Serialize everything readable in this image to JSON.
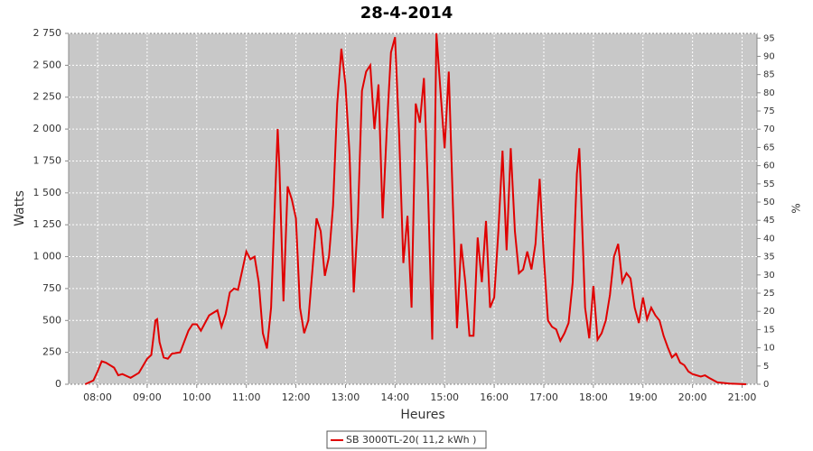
{
  "chart_data": {
    "type": "line",
    "title": "28-4-2014",
    "xlabel": "Heures",
    "ylabel": "Watts",
    "y2label": "%",
    "x": [
      "07:45",
      "07:55",
      "08:00",
      "08:05",
      "08:10",
      "08:20",
      "08:25",
      "08:30",
      "08:40",
      "08:50",
      "09:00",
      "09:05",
      "09:10",
      "09:12",
      "09:15",
      "09:20",
      "09:25",
      "09:30",
      "09:40",
      "09:50",
      "09:55",
      "10:00",
      "10:05",
      "10:15",
      "10:25",
      "10:30",
      "10:35",
      "10:40",
      "10:45",
      "10:50",
      "11:00",
      "11:05",
      "11:10",
      "11:15",
      "11:20",
      "11:25",
      "11:30",
      "11:35",
      "11:38",
      "11:40",
      "11:45",
      "11:50",
      "11:55",
      "12:00",
      "12:05",
      "12:10",
      "12:15",
      "12:20",
      "12:25",
      "12:30",
      "12:35",
      "12:40",
      "12:45",
      "12:50",
      "12:55",
      "13:00",
      "13:05",
      "13:10",
      "13:15",
      "13:20",
      "13:25",
      "13:30",
      "13:35",
      "13:40",
      "13:45",
      "13:50",
      "13:55",
      "14:00",
      "14:05",
      "14:10",
      "14:15",
      "14:20",
      "14:25",
      "14:30",
      "14:35",
      "14:40",
      "14:45",
      "14:50",
      "14:55",
      "15:00",
      "15:05",
      "15:10",
      "15:15",
      "15:20",
      "15:25",
      "15:30",
      "15:35",
      "15:40",
      "15:45",
      "15:50",
      "15:55",
      "16:00",
      "16:05",
      "16:10",
      "16:15",
      "16:20",
      "16:25",
      "16:30",
      "16:35",
      "16:40",
      "16:45",
      "16:50",
      "16:55",
      "17:00",
      "17:05",
      "17:10",
      "17:15",
      "17:20",
      "17:25",
      "17:30",
      "17:35",
      "17:40",
      "17:43",
      "17:45",
      "17:50",
      "17:55",
      "18:00",
      "18:05",
      "18:10",
      "18:15",
      "18:20",
      "18:25",
      "18:30",
      "18:35",
      "18:40",
      "18:45",
      "18:50",
      "18:55",
      "19:00",
      "19:05",
      "19:10",
      "19:15",
      "19:20",
      "19:25",
      "19:30",
      "19:35",
      "19:40",
      "19:45",
      "19:50",
      "19:55",
      "20:00",
      "20:10",
      "20:15",
      "20:20",
      "20:30",
      "20:45",
      "21:05"
    ],
    "series": [
      {
        "name": "SB 3000TL-20( 11,2 kWh )",
        "color": "#e00000",
        "values": [
          0,
          30,
          100,
          180,
          170,
          130,
          70,
          80,
          50,
          90,
          200,
          230,
          500,
          510,
          330,
          210,
          200,
          240,
          250,
          420,
          470,
          470,
          420,
          540,
          580,
          450,
          550,
          720,
          750,
          740,
          1040,
          980,
          1000,
          800,
          400,
          280,
          600,
          1500,
          2000,
          1700,
          650,
          1550,
          1450,
          1300,
          600,
          400,
          500,
          900,
          1300,
          1200,
          850,
          1000,
          1400,
          2200,
          2630,
          2350,
          1800,
          720,
          1300,
          2300,
          2450,
          2500,
          2000,
          2350,
          1300,
          2000,
          2600,
          2720,
          1950,
          950,
          1320,
          600,
          2200,
          2050,
          2400,
          1500,
          350,
          2750,
          2300,
          1850,
          2450,
          1400,
          440,
          1100,
          800,
          380,
          380,
          1150,
          800,
          1280,
          600,
          680,
          1200,
          1830,
          1050,
          1850,
          1200,
          870,
          900,
          1040,
          900,
          1100,
          1610,
          1000,
          500,
          450,
          430,
          340,
          400,
          480,
          800,
          1650,
          1850,
          1500,
          600,
          360,
          770,
          350,
          400,
          500,
          700,
          1000,
          1100,
          800,
          870,
          830,
          600,
          480,
          680,
          510,
          600,
          540,
          500,
          380,
          290,
          210,
          240,
          170,
          150,
          100,
          80,
          60,
          70,
          50,
          15,
          5,
          0
        ]
      }
    ],
    "xlim": [
      "07:25",
      "21:18"
    ],
    "xticks": [
      "08:00",
      "09:00",
      "10:00",
      "11:00",
      "12:00",
      "13:00",
      "14:00",
      "15:00",
      "16:00",
      "17:00",
      "18:00",
      "19:00",
      "20:00",
      "21:00"
    ],
    "ylim": [
      0,
      2750
    ],
    "yticks": [
      0,
      250,
      500,
      750,
      {
        "value": 1000,
        "label": "1 000"
      },
      {
        "value": 1250,
        "label": "1 250"
      },
      {
        "value": 1500,
        "label": "1 500"
      },
      {
        "value": 1750,
        "label": "1 750"
      },
      {
        "value": 2000,
        "label": "2 000"
      },
      {
        "value": 2250,
        "label": "2 250"
      },
      {
        "value": 2500,
        "label": "2 500"
      },
      {
        "value": 2750,
        "label": "2 750"
      }
    ],
    "y2lim": [
      0,
      96.3
    ],
    "y2ticks": [
      0,
      5,
      10,
      15,
      20,
      25,
      30,
      35,
      40,
      45,
      50,
      55,
      60,
      65,
      70,
      75,
      80,
      85,
      90,
      95
    ],
    "grid": true
  }
}
